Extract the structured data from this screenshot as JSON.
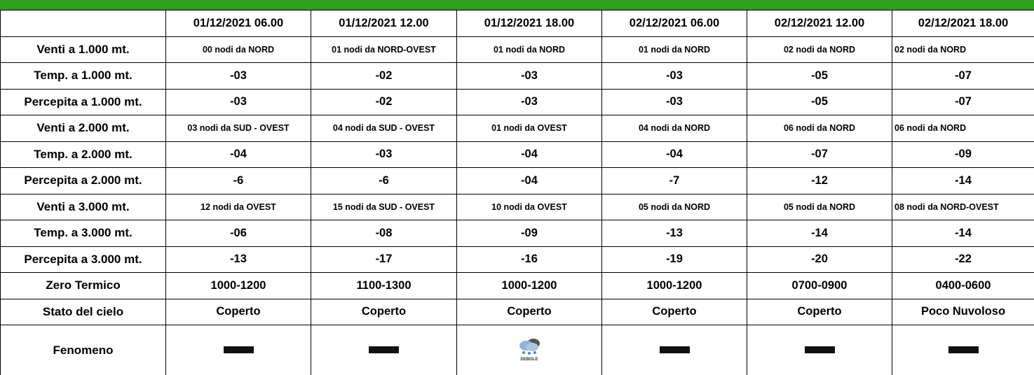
{
  "table": {
    "columns": [
      "01/12/2021 06.00",
      "01/12/2021 12.00",
      "01/12/2021 18.00",
      "02/12/2021 06.00",
      "02/12/2021 12.00",
      "02/12/2021 18.00"
    ],
    "rows": [
      {
        "label": "Venti a 1.000 mt.",
        "kind": "wind",
        "cells": [
          "00 nodi da NORD",
          "01 nodi da NORD-OVEST",
          "01 nodi da NORD",
          "01 nodi da NORD",
          "02 nodi da NORD",
          "02 nodi da NORD"
        ]
      },
      {
        "label": "Temp. a 1.000 mt.",
        "kind": "value",
        "cells": [
          "-03",
          "-02",
          "-03",
          "-03",
          "-05",
          "-07"
        ]
      },
      {
        "label": "Percepita a 1.000 mt.",
        "kind": "value",
        "cells": [
          "-03",
          "-02",
          "-03",
          "-03",
          "-05",
          "-07"
        ]
      },
      {
        "label": "Venti a 2.000 mt.",
        "kind": "wind",
        "cells": [
          "03 nodi da SUD - OVEST",
          "04 nodi da SUD - OVEST",
          "01 nodi da OVEST",
          "04 nodi da NORD",
          "06 nodi da NORD",
          "06 nodi da NORD"
        ]
      },
      {
        "label": "Temp. a 2.000 mt.",
        "kind": "value",
        "cells": [
          "-04",
          "-03",
          "-04",
          "-04",
          "-07",
          "-09"
        ]
      },
      {
        "label": "Percepita a 2.000 mt.",
        "kind": "value",
        "cells": [
          "-6",
          "-6",
          "-04",
          "-7",
          "-12",
          "-14"
        ]
      },
      {
        "label": "Venti a 3.000 mt.",
        "kind": "wind",
        "cells": [
          "12 nodi da OVEST",
          "15 nodi da SUD - OVEST",
          "10 nodi da OVEST",
          "05 nodi da NORD",
          "05 nodi da NORD",
          "08 nodi da NORD-OVEST"
        ]
      },
      {
        "label": "Temp. a 3.000 mt.",
        "kind": "value",
        "cells": [
          "-06",
          "-08",
          "-09",
          "-13",
          "-14",
          "-14"
        ]
      },
      {
        "label": "Percepita a 3.000 mt.",
        "kind": "value",
        "cells": [
          "-13",
          "-17",
          "-16",
          "-19",
          "-20",
          "-22"
        ]
      },
      {
        "label": "Zero Termico",
        "kind": "value",
        "cells": [
          "1000-1200",
          "1100-1300",
          "1000-1200",
          "1000-1200",
          "0700-0900",
          "0400-0600"
        ]
      },
      {
        "label": "Stato del cielo",
        "kind": "value",
        "cells": [
          "Coperto",
          "Coperto",
          "Coperto",
          "Coperto",
          "Coperto",
          "Poco Nuvoloso"
        ]
      }
    ],
    "fenomeno": {
      "label": "Fenomeno",
      "cells": [
        {
          "icon": "dash"
        },
        {
          "icon": "dash"
        },
        {
          "icon": "snow",
          "label": "DEBOLE"
        },
        {
          "icon": "dash"
        },
        {
          "icon": "dash"
        },
        {
          "icon": "dash"
        }
      ]
    }
  }
}
